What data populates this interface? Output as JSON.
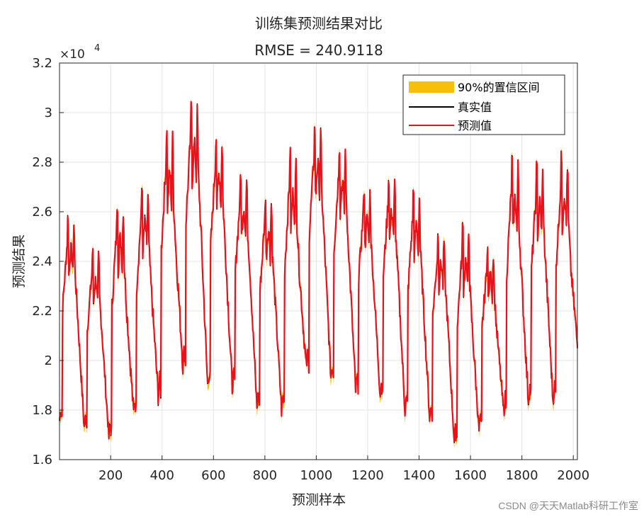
{
  "chart_data": {
    "type": "line",
    "title": "训练集预测结果对比",
    "subtitle": "RMSE = 240.9118",
    "xlabel": "预测样本",
    "ylabel": "预测结果",
    "exponent_label": "×10",
    "exponent_power": "4",
    "xlim": [
      1,
      2016
    ],
    "ylim": [
      1.6,
      3.2
    ],
    "x_ticks": [
      200,
      400,
      600,
      800,
      1000,
      1200,
      1400,
      1600,
      1800,
      2000
    ],
    "y_ticks": [
      1.6,
      1.8,
      2.0,
      2.2,
      2.4,
      2.6,
      2.8,
      3.0,
      3.2
    ],
    "y_tick_labels": [
      "1.6",
      "1.8",
      "2",
      "2.2",
      "2.4",
      "2.6",
      "2.8",
      "3",
      "3.2"
    ],
    "grid": true,
    "legend_position": "top-right",
    "cycle_length": 96,
    "cycles": [
      {
        "x": 0,
        "low": 1.76,
        "high": 2.57
      },
      {
        "x": 96,
        "low": 1.73,
        "high": 2.43
      },
      {
        "x": 192,
        "low": 1.69,
        "high": 2.63
      },
      {
        "x": 288,
        "low": 1.79,
        "high": 2.69
      },
      {
        "x": 384,
        "low": 1.86,
        "high": 2.91
      },
      {
        "x": 480,
        "low": 1.98,
        "high": 3.02
      },
      {
        "x": 576,
        "low": 1.9,
        "high": 2.9
      },
      {
        "x": 672,
        "low": 1.89,
        "high": 2.74
      },
      {
        "x": 768,
        "low": 1.81,
        "high": 2.65
      },
      {
        "x": 864,
        "low": 1.8,
        "high": 2.82
      },
      {
        "x": 960,
        "low": 1.97,
        "high": 2.93
      },
      {
        "x": 1056,
        "low": 1.93,
        "high": 2.86
      },
      {
        "x": 1152,
        "low": 1.88,
        "high": 2.69
      },
      {
        "x": 1248,
        "low": 1.86,
        "high": 2.73
      },
      {
        "x": 1344,
        "low": 1.8,
        "high": 2.67
      },
      {
        "x": 1440,
        "low": 1.77,
        "high": 2.5
      },
      {
        "x": 1536,
        "low": 1.67,
        "high": 2.53
      },
      {
        "x": 1632,
        "low": 1.72,
        "high": 2.45
      },
      {
        "x": 1728,
        "low": 1.79,
        "high": 2.8
      },
      {
        "x": 1824,
        "low": 1.84,
        "high": 2.77
      },
      {
        "x": 1920,
        "low": 1.84,
        "high": 2.81
      }
    ],
    "end_value": 2.05,
    "series": [
      {
        "name": "90%的置信区间",
        "color": "#F7BE0A"
      },
      {
        "name": "真实值",
        "color": "#000000"
      },
      {
        "name": "预测值",
        "color": "#E8121A"
      }
    ]
  },
  "watermark": "CSDN @天天Matlab科研工作室"
}
